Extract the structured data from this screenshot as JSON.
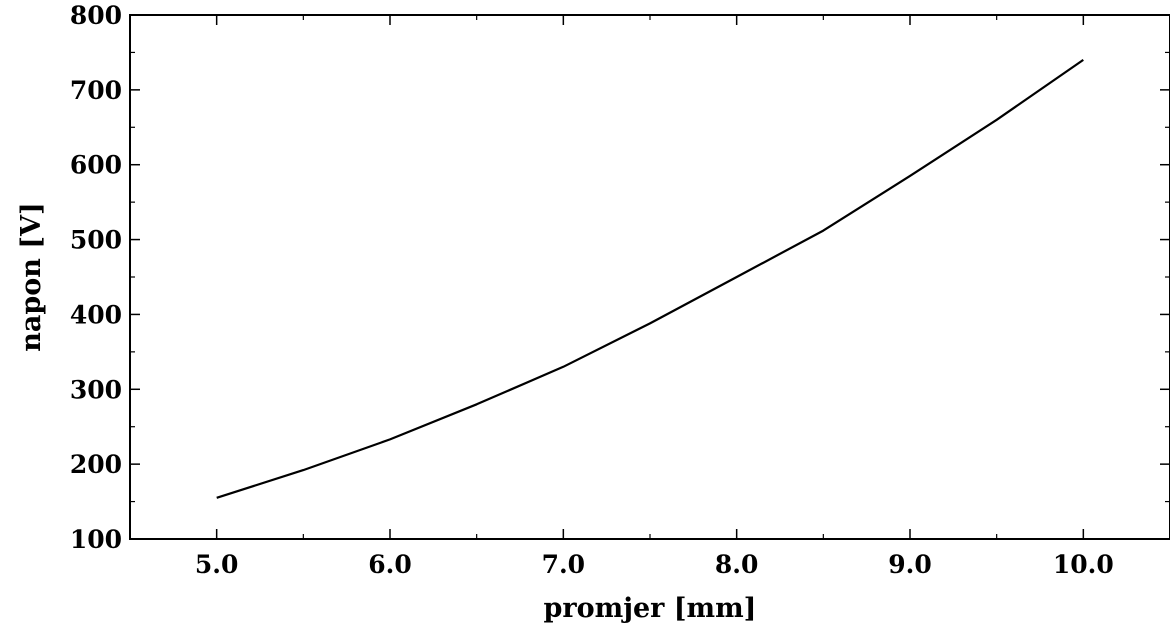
{
  "chart_data": {
    "type": "line",
    "title": "",
    "xlabel": "promjer [mm]",
    "ylabel": "napon [V]",
    "xlim": [
      4.5,
      10.5
    ],
    "ylim": [
      100,
      800
    ],
    "x_ticks": [
      5.0,
      6.0,
      7.0,
      8.0,
      9.0,
      10.0
    ],
    "x_tick_labels": [
      "5.0",
      "6.0",
      "7.0",
      "8.0",
      "9.0",
      "10.0"
    ],
    "y_ticks": [
      100,
      200,
      300,
      400,
      500,
      600,
      700,
      800
    ],
    "y_tick_labels": [
      "100",
      "200",
      "300",
      "400",
      "500",
      "600",
      "700",
      "800"
    ],
    "grid": false,
    "series": [
      {
        "color": "#000000",
        "x": [
          5.0,
          5.5,
          6.0,
          6.5,
          7.0,
          7.5,
          8.0,
          8.5,
          9.0,
          9.5,
          10.0
        ],
        "y": [
          155,
          192,
          233,
          280,
          330,
          388,
          450,
          512,
          585,
          660,
          740
        ]
      }
    ]
  }
}
